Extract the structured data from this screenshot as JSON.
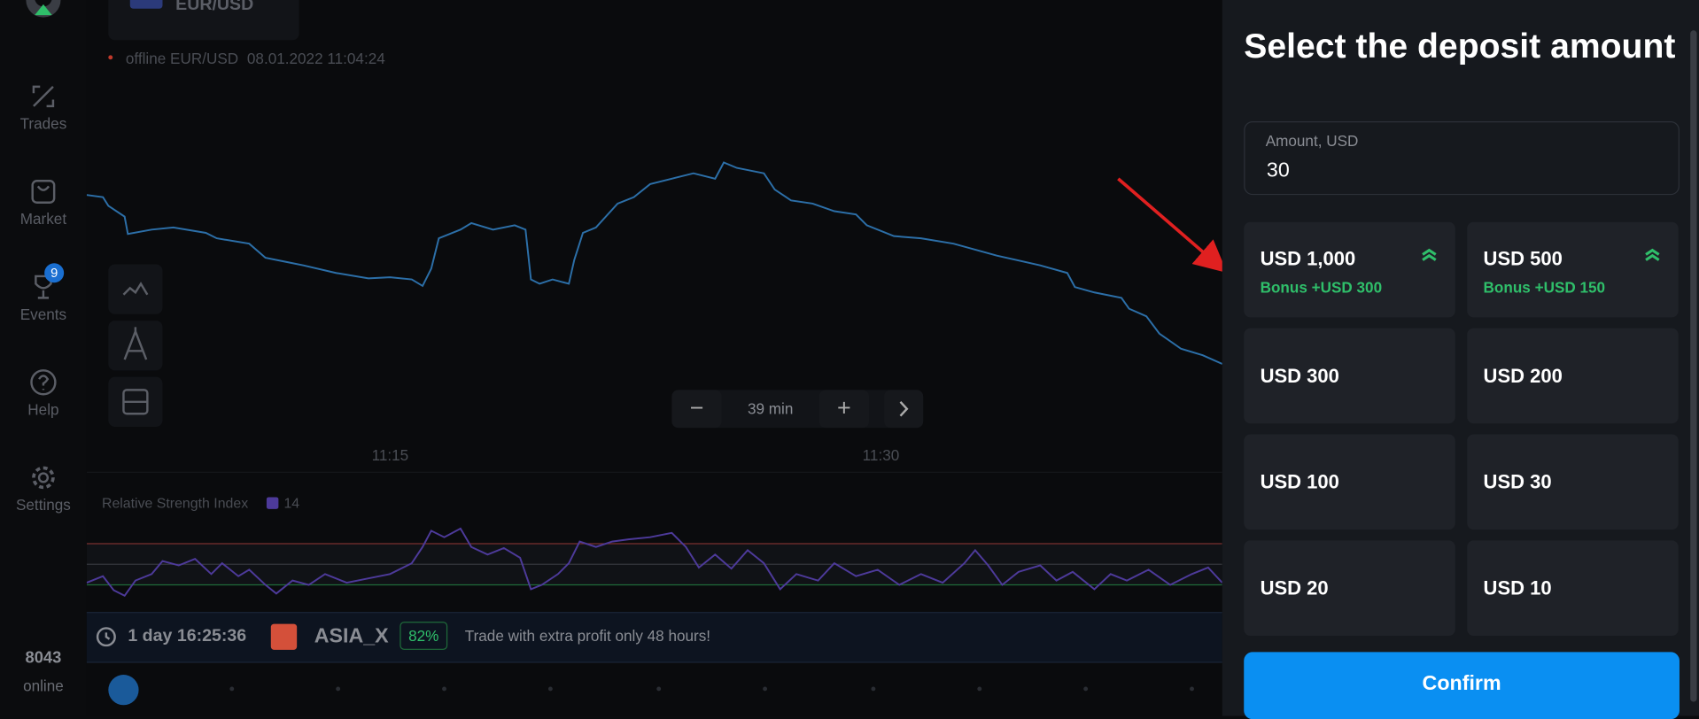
{
  "sidebar": {
    "items": [
      "Trades",
      "Market",
      "Events",
      "Help",
      "Settings"
    ],
    "events_badge": "9",
    "online_count": "8043",
    "online_label": "online"
  },
  "chart": {
    "asset": "EUR/USD",
    "status": "offline EUR/USD",
    "timestamp": "08.01.2022 11:04:24",
    "time_labels": [
      "11:15",
      "11:30"
    ],
    "zoom": "39 min",
    "indicator": {
      "name": "Relative Strength Index",
      "period": "14"
    }
  },
  "promo": {
    "timer": "1 day 16:25:36",
    "asset": "ASIA_X",
    "percent": "82%",
    "text": "Trade with extra profit only 48 hours!"
  },
  "panel": {
    "title": "Select the deposit amount",
    "amount_label": "Amount, USD",
    "amount_value": "30",
    "options": [
      {
        "label": "USD 1,000",
        "bonus": "Bonus +USD 300"
      },
      {
        "label": "USD 500",
        "bonus": "Bonus +USD 150"
      },
      {
        "label": "USD 300"
      },
      {
        "label": "USD 200"
      },
      {
        "label": "USD 100"
      },
      {
        "label": "USD 30"
      },
      {
        "label": "USD 20"
      },
      {
        "label": "USD 10"
      }
    ],
    "confirm": "Confirm"
  }
}
